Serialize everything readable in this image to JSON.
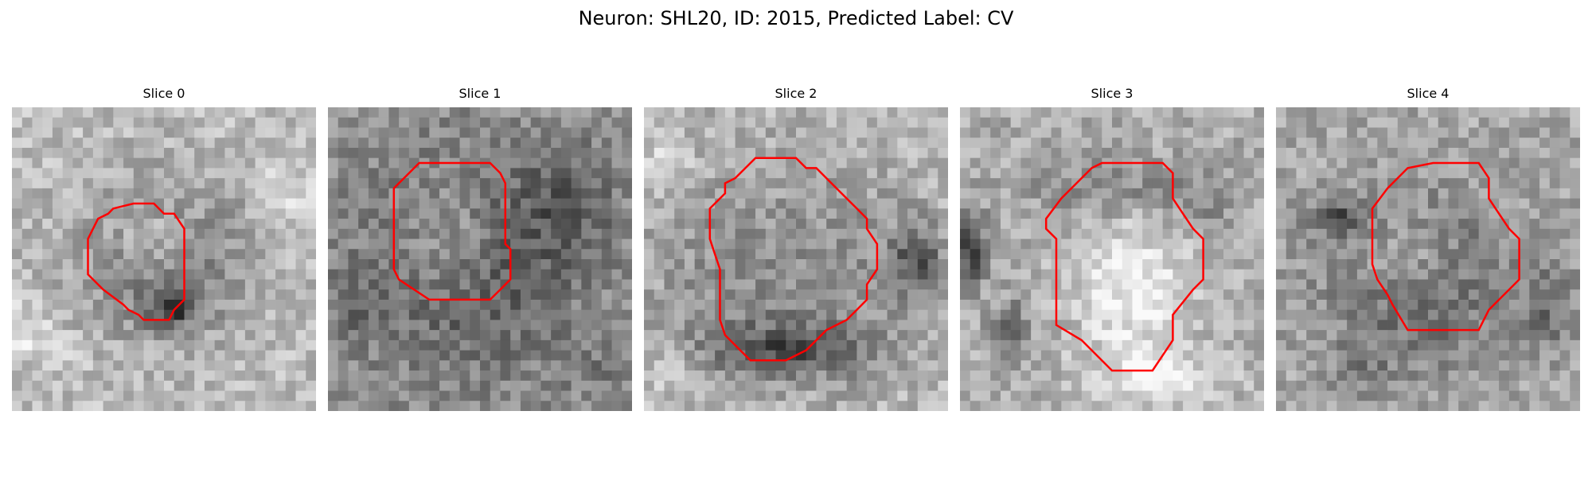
{
  "figure": {
    "title": "Neuron: SHL20, ID: 2015, Predicted Label: CV"
  },
  "panels": [
    {
      "title": "Slice 0"
    },
    {
      "title": "Slice 1"
    },
    {
      "title": "Slice 2"
    },
    {
      "title": "Slice 3"
    },
    {
      "title": "Slice 4"
    }
  ],
  "colors": {
    "contour": "#ff0000",
    "image_colormap": "grayscale"
  }
}
